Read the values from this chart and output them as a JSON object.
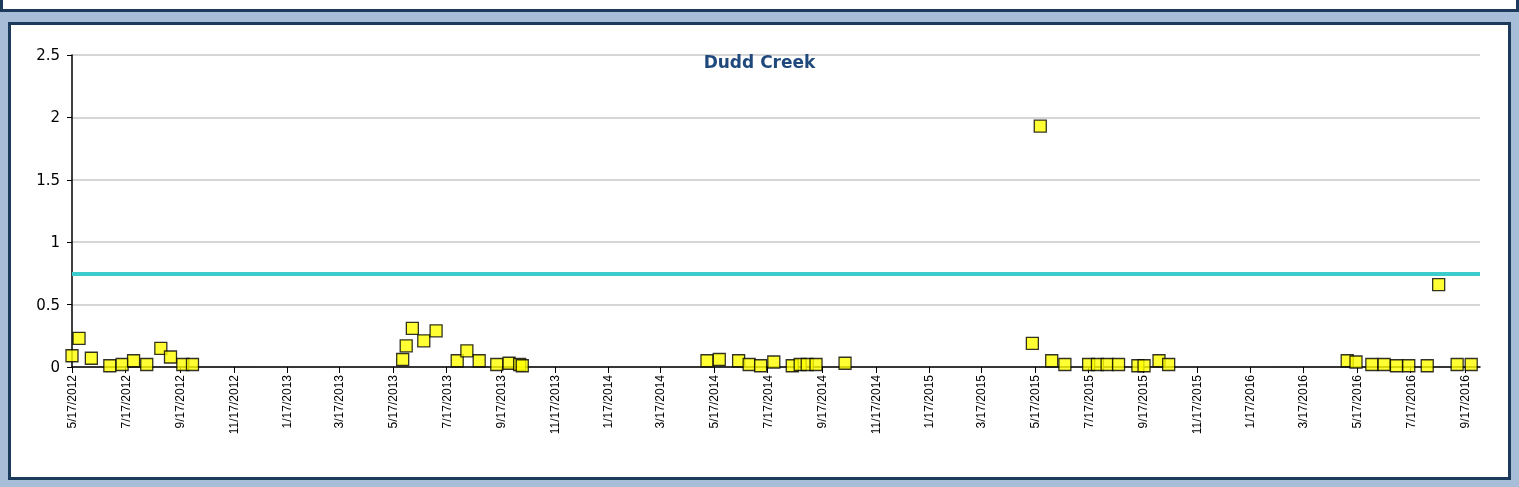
{
  "chart_data": {
    "type": "scatter",
    "title": "Dudd Creek",
    "x": [
      "2012-05-17",
      "2012-05-25",
      "2012-06-08",
      "2012-06-29",
      "2012-07-13",
      "2012-07-26",
      "2012-08-10",
      "2012-08-26",
      "2012-09-06",
      "2012-09-20",
      "2012-10-01",
      "2013-05-28",
      "2013-06-01",
      "2013-06-08",
      "2013-06-21",
      "2013-07-05",
      "2013-07-29",
      "2013-08-09",
      "2013-08-23",
      "2013-09-12",
      "2013-09-26",
      "2013-10-08",
      "2013-10-11",
      "2014-05-09",
      "2014-05-23",
      "2014-06-14",
      "2014-06-26",
      "2014-07-09",
      "2014-07-24",
      "2014-08-14",
      "2014-08-23",
      "2014-08-31",
      "2014-09-10",
      "2014-10-13",
      "2015-05-14",
      "2015-05-23",
      "2015-06-05",
      "2015-06-20",
      "2015-07-17",
      "2015-07-27",
      "2015-08-07",
      "2015-08-20",
      "2015-09-11",
      "2015-09-18",
      "2015-10-05",
      "2015-10-16",
      "2016-05-06",
      "2016-05-16",
      "2016-06-03",
      "2016-06-17",
      "2016-07-01",
      "2016-07-15",
      "2016-08-05",
      "2016-08-18",
      "2016-09-08",
      "2016-09-24"
    ],
    "series": [
      {
        "color": "#ffff00",
        "values": [
          0.09,
          0.23,
          0.07,
          0.01,
          0.02,
          0.05,
          0.02,
          0.15,
          0.08,
          0.02,
          0.02,
          0.06,
          0.17,
          0.31,
          0.21,
          0.29,
          0.05,
          0.13,
          0.05,
          0.02,
          0.03,
          0.02,
          0.01,
          0.05,
          0.06,
          0.05,
          0.02,
          0.01,
          0.04,
          0.01,
          0.02,
          0.02,
          0.02,
          0.03,
          0.19,
          1.93,
          0.05,
          0.02,
          0.02,
          0.02,
          0.02,
          0.02,
          0.01,
          0.01,
          0.05,
          0.02,
          0.05,
          0.04,
          0.02,
          0.02,
          0.01,
          0.01,
          0.01,
          0.66,
          0.02,
          0.02
        ]
      }
    ],
    "marker": "square",
    "xlim": [
      "2012-05-17",
      "2016-10-04"
    ],
    "xticks": [
      {
        "value": "2012-05-17",
        "label": "5/17/2012"
      },
      {
        "value": "2012-07-17",
        "label": "7/17/2012"
      },
      {
        "value": "2012-09-17",
        "label": "9/17/2012"
      },
      {
        "value": "2012-11-17",
        "label": "11/17/2012"
      },
      {
        "value": "2013-01-17",
        "label": "1/17/2013"
      },
      {
        "value": "2013-03-17",
        "label": "3/17/2013"
      },
      {
        "value": "2013-05-17",
        "label": "5/17/2013"
      },
      {
        "value": "2013-07-17",
        "label": "7/17/2013"
      },
      {
        "value": "2013-09-17",
        "label": "9/17/2013"
      },
      {
        "value": "2013-11-17",
        "label": "11/17/2013"
      },
      {
        "value": "2014-01-17",
        "label": "1/17/2014"
      },
      {
        "value": "2014-03-17",
        "label": "3/17/2014"
      },
      {
        "value": "2014-05-17",
        "label": "5/17/2014"
      },
      {
        "value": "2014-07-17",
        "label": "7/17/2014"
      },
      {
        "value": "2014-09-17",
        "label": "9/17/2014"
      },
      {
        "value": "2014-11-17",
        "label": "11/17/2014"
      },
      {
        "value": "2015-01-17",
        "label": "1/17/2015"
      },
      {
        "value": "2015-03-17",
        "label": "3/17/2015"
      },
      {
        "value": "2015-05-17",
        "label": "5/17/2015"
      },
      {
        "value": "2015-07-17",
        "label": "7/17/2015"
      },
      {
        "value": "2015-09-17",
        "label": "9/17/2015"
      },
      {
        "value": "2015-11-17",
        "label": "11/17/2015"
      },
      {
        "value": "2016-01-17",
        "label": "1/17/2016"
      },
      {
        "value": "2016-03-17",
        "label": "3/17/2016"
      },
      {
        "value": "2016-05-17",
        "label": "5/17/2016"
      },
      {
        "value": "2016-07-17",
        "label": "7/17/2016"
      },
      {
        "value": "2016-09-17",
        "label": "9/17/2016"
      }
    ],
    "ylim": [
      0,
      2.5
    ],
    "yticks": [
      0,
      0.5,
      1,
      1.5,
      2,
      2.5
    ],
    "grid": "y",
    "ref_lines": [
      {
        "axis": "y",
        "value": 0.75,
        "color": "#3ccccc"
      }
    ]
  }
}
